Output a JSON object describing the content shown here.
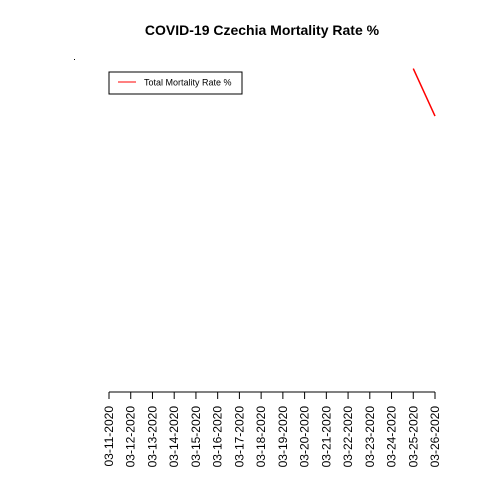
{
  "chart_data": {
    "type": "line",
    "title": "COVID-19 Czechia Mortality Rate %",
    "xlabel": "",
    "ylabel": "",
    "x": [
      "03-11-2020",
      "03-12-2020",
      "03-13-2020",
      "03-14-2020",
      "03-15-2020",
      "03-16-2020",
      "03-17-2020",
      "03-18-2020",
      "03-19-2020",
      "03-20-2020",
      "03-21-2020",
      "03-22-2020",
      "03-23-2020",
      "03-24-2020",
      "03-25-2020",
      "03-26-2020"
    ],
    "series": [
      {
        "name": "Total Mortality Rate %",
        "color": "#ff0000",
        "values": [
          null,
          null,
          null,
          null,
          null,
          null,
          null,
          null,
          null,
          null,
          null,
          null,
          null,
          null,
          0.68,
          0.58
        ]
      }
    ],
    "ylim": [
      0,
      0.7
    ],
    "grid": false,
    "legend_position": "top-left"
  }
}
